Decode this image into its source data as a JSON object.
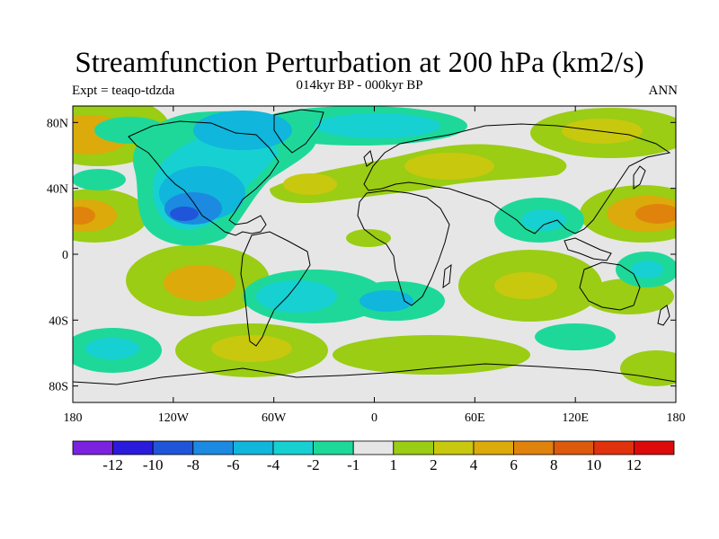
{
  "title": "Streamfunction Perturbation at 200 hPa (km2/s)",
  "subtitle": "014kyr BP - 000kyr BP",
  "left_label": "Expt = teaqo-tdzda",
  "right_label": "ANN",
  "map": {
    "projection": "cylindrical equidistant",
    "lon_range": [
      -180,
      180
    ],
    "lat_range": [
      -90,
      90
    ],
    "lat_ticks": [
      "80N",
      "40N",
      "0",
      "40S",
      "80S"
    ],
    "lat_values": [
      80,
      40,
      0,
      -40,
      -80
    ],
    "lon_ticks": [
      "180",
      "120W",
      "60W",
      "0",
      "60E",
      "120E",
      "180"
    ],
    "lon_values": [
      -180,
      -120,
      -60,
      0,
      60,
      120,
      180
    ]
  },
  "colorbar": {
    "labels": [
      "-12",
      "-10",
      "-8",
      "-6",
      "-4",
      "-2",
      "-1",
      "1",
      "2",
      "4",
      "6",
      "8",
      "10",
      "12"
    ],
    "colors": [
      "#7a22e0",
      "#2a1adc",
      "#1f55d8",
      "#1b8ae0",
      "#10b6dc",
      "#16d0d2",
      "#1ed89a",
      "#e6e6e6",
      "#9acd14",
      "#c8c80e",
      "#dcaa0a",
      "#e0830c",
      "#dc5a0c",
      "#e0320c",
      "#dc0a0a"
    ]
  },
  "colors": {
    "neutral": "#e6e6e6",
    "pos_light": "#9acd14",
    "pos_mid": "#c8c80e",
    "pos_strong": "#dcaa0a",
    "pos_stronger": "#e0830c",
    "neg_light": "#1ed89a",
    "neg_mid": "#16d0d2",
    "neg_strong": "#10b6dc",
    "neg_stronger": "#1b8ae0",
    "neg_deep": "#1f55d8"
  }
}
